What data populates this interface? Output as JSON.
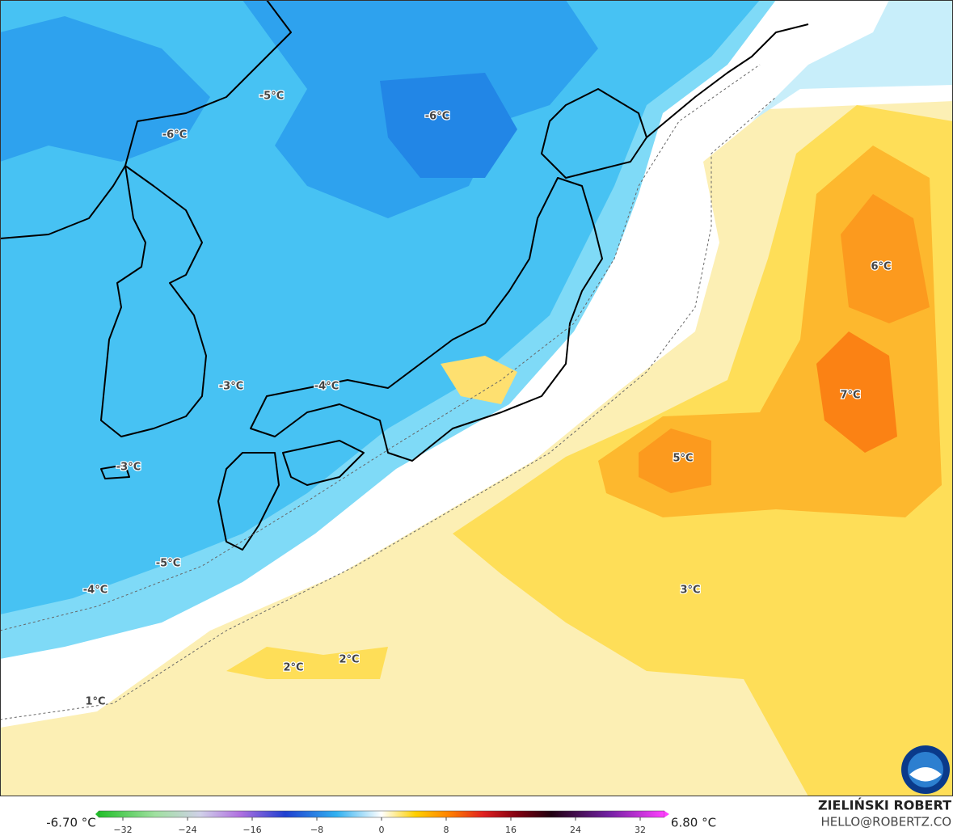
{
  "map": {
    "labels": [
      "-5°C",
      "-6°C",
      "-6°C",
      "-3°C",
      "-4°C",
      "-3°C",
      "-5°C",
      "-4°C",
      "6°C",
      "7°C",
      "5°C",
      "3°C",
      "2°C",
      "2°C",
      "1°C"
    ],
    "colorbar": {
      "min_label": "-6.70 °C",
      "max_label": "6.80 °C",
      "range": [
        -35,
        35
      ],
      "ticks": [
        {
          "value": -32,
          "label": "−32"
        },
        {
          "value": -24,
          "label": "−24"
        },
        {
          "value": -16,
          "label": "−16"
        },
        {
          "value": -8,
          "label": "−8"
        },
        0,
        8,
        16,
        24,
        32
      ]
    },
    "credit": {
      "author": "ZIELIŃSKI ROBERT",
      "site": "HELLO@ROBERTZ.CO"
    }
  }
}
